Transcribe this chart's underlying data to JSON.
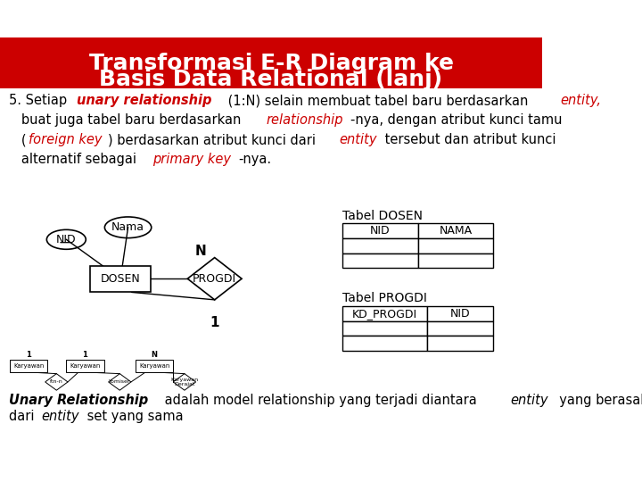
{
  "title_line1": "Transformasi E-R Diagram ke",
  "title_line2": "Basis Data Relational (lanj)",
  "title_bg": "#CC0000",
  "title_fg": "#FFFFFF",
  "body_bg": "#FFFFFF",
  "para_text": [
    {
      "parts": [
        {
          "text": "5. Setiap ",
          "style": "normal",
          "color": "#000000"
        },
        {
          "text": "unary relationship",
          "style": "bolditalic",
          "color": "#CC0000"
        },
        {
          "text": " (1:N) selain membuat tabel baru berdasarkan ",
          "style": "normal",
          "color": "#000000"
        },
        {
          "text": "entity,",
          "style": "italic",
          "color": "#CC0000"
        }
      ]
    },
    {
      "parts": [
        {
          "text": "   buat juga tabel baru berdasarkan ",
          "style": "normal",
          "color": "#000000"
        },
        {
          "text": "relationship",
          "style": "italic",
          "color": "#CC0000"
        },
        {
          "text": "-nya, dengan atribut kunci tamu",
          "style": "normal",
          "color": "#000000"
        }
      ]
    },
    {
      "parts": [
        {
          "text": "   (",
          "style": "normal",
          "color": "#000000"
        },
        {
          "text": "foreign key",
          "style": "italic",
          "color": "#CC0000"
        },
        {
          "text": ") berdasarkan atribut kunci dari ",
          "style": "normal",
          "color": "#000000"
        },
        {
          "text": "entity",
          "style": "italic",
          "color": "#CC0000"
        },
        {
          "text": " tersebut dan atribut kunci",
          "style": "normal",
          "color": "#000000"
        }
      ]
    },
    {
      "parts": [
        {
          "text": "   alternatif sebagai ",
          "style": "normal",
          "color": "#000000"
        },
        {
          "text": "primary key",
          "style": "italic",
          "color": "#CC0000"
        },
        {
          "text": "-nya.",
          "style": "normal",
          "color": "#000000"
        }
      ]
    }
  ],
  "footer_text": [
    {
      "parts": [
        {
          "text": "Unary Relationship",
          "style": "bolditalic",
          "color": "#000000"
        },
        {
          "text": " adalah model relationship yang terjadi diantara ",
          "style": "normal",
          "color": "#000000"
        },
        {
          "text": "entity",
          "style": "italic",
          "color": "#000000"
        },
        {
          "text": "  yang berasal",
          "style": "normal",
          "color": "#000000"
        }
      ]
    },
    {
      "parts": [
        {
          "text": "dari ",
          "style": "normal",
          "color": "#000000"
        },
        {
          "text": "entity",
          "style": "italic",
          "color": "#000000"
        },
        {
          "text": " set yang sama",
          "style": "normal",
          "color": "#000000"
        }
      ]
    }
  ]
}
